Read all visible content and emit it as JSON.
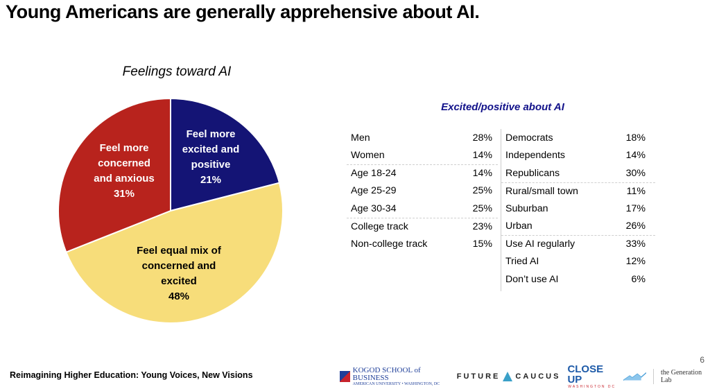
{
  "header": {
    "title": "Young Americans are generally apprehensive about AI."
  },
  "chart_data": {
    "type": "pie",
    "title": "Feelings toward AI",
    "slices": [
      {
        "label_lines": [
          "Feel more",
          "excited and",
          "positive",
          "21%"
        ],
        "label": "Feel more excited and positive",
        "value": 21,
        "color": "#141475",
        "text_color": "#ffffff"
      },
      {
        "label_lines": [
          "Feel equal mix of",
          "concerned and",
          "excited",
          "48%"
        ],
        "label": "Feel equal mix of concerned and excited",
        "value": 48,
        "color": "#f7dd7a",
        "text_color": "#000000"
      },
      {
        "label_lines": [
          "Feel more",
          "concerned",
          "and anxious",
          "31%"
        ],
        "label": "Feel more concerned and anxious",
        "value": 31,
        "color": "#b8231d",
        "text_color": "#ffffff"
      }
    ],
    "start": "12 o'clock, clockwise"
  },
  "table": {
    "title": "Excited/positive about AI",
    "left": [
      {
        "label": "Men",
        "value": "28%",
        "sep": false
      },
      {
        "label": "Women",
        "value": "14%",
        "sep": false
      },
      {
        "label": "Age 18-24",
        "value": "14%",
        "sep": true
      },
      {
        "label": "Age 25-29",
        "value": "25%",
        "sep": false
      },
      {
        "label": "Age 30-34",
        "value": "25%",
        "sep": false
      },
      {
        "label": "College track",
        "value": "23%",
        "sep": true
      },
      {
        "label": "Non-college track",
        "value": "15%",
        "sep": false
      }
    ],
    "right": [
      {
        "label": "Democrats",
        "value": "18%",
        "sep": false
      },
      {
        "label": "Independents",
        "value": "14%",
        "sep": false
      },
      {
        "label": "Republicans",
        "value": "30%",
        "sep": false
      },
      {
        "label": "Rural/small town",
        "value": "11%",
        "sep": true
      },
      {
        "label": "Suburban",
        "value": "17%",
        "sep": false
      },
      {
        "label": "Urban",
        "value": "26%",
        "sep": false
      },
      {
        "label": "Use AI regularly",
        "value": "33%",
        "sep": true
      },
      {
        "label": "Tried AI",
        "value": "12%",
        "sep": false
      },
      {
        "label": "Don’t use AI",
        "value": "6%",
        "sep": false
      }
    ]
  },
  "footer": {
    "text": "Reimagining Higher Education: Young Voices, New Visions",
    "page_number": "6",
    "logos": {
      "kogod_main": "KOGOD SCHOOL of BUSINESS",
      "kogod_sub": "AMERICAN UNIVERSITY • WASHINGTON, DC",
      "future_left": "FUTURE",
      "future_right": "CAUCUS",
      "closeup": "CLOSE UP",
      "closeup_sub": "WASHINGTON DC",
      "genlab": "the Generation Lab"
    }
  }
}
